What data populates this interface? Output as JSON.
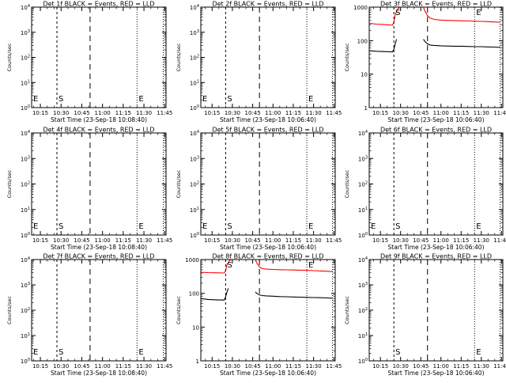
{
  "chart_data": [
    {
      "type": "line",
      "title": "Det 1f BLACK = Events, RED = LLD",
      "xlabel": "Start Time (23-Sep-18 10:08:40)",
      "ylabel": "Counts/sec",
      "y_scale": "log",
      "ylim": [
        1,
        10000
      ],
      "y_tick_labels": [
        "10^0",
        "10^1",
        "10^2",
        "10^3",
        "10^4"
      ],
      "x_tick_labels": [
        "10:15",
        "10:30",
        "10:45",
        "11:00",
        "11:15",
        "11:30",
        "11:45"
      ],
      "xlim_minutes_of_day": [
        608.67,
        706
      ],
      "markers": [
        {
          "label": "E",
          "x": "10:08:40",
          "style": "dotted"
        },
        {
          "label": "S",
          "x": "10:27",
          "style": "dashed"
        },
        {
          "label": "",
          "x": "10:51",
          "style": "longdash"
        },
        {
          "label": "E",
          "x": "11:25",
          "style": "dotted"
        },
        {
          "label": "",
          "x": "11:44",
          "style": "dotted"
        }
      ],
      "series": []
    },
    {
      "type": "line",
      "title": "Det 2f BLACK = Events, RED = LLD",
      "xlabel": "Start Time (23-Sep-18 10:06:40)",
      "ylabel": "Counts/sec",
      "y_scale": "log",
      "ylim": [
        1,
        10000
      ],
      "y_tick_labels": [
        "10^0",
        "10^1",
        "10^2",
        "10^3",
        "10^4"
      ],
      "x_tick_labels": [
        "10:15",
        "10:30",
        "10:45",
        "11:00",
        "11:15",
        "11:30",
        "11:45"
      ],
      "xlim_minutes_of_day": [
        606.67,
        706
      ],
      "markers": [
        {
          "label": "E",
          "x": "10:06:40",
          "style": "dotted"
        },
        {
          "label": "S",
          "x": "10:25",
          "style": "dashed"
        },
        {
          "label": "",
          "x": "10:50",
          "style": "longdash"
        },
        {
          "label": "E",
          "x": "11:25",
          "style": "dotted"
        },
        {
          "label": "",
          "x": "11:44",
          "style": "dotted"
        }
      ],
      "series": []
    },
    {
      "type": "line",
      "title": "Det 3f BLACK = Events, RED = LLD",
      "xlabel": "Start Time (23-Sep-18 10:06:40)",
      "ylabel": "Counts/sec",
      "y_scale": "log",
      "ylim": [
        1,
        1000
      ],
      "y_tick_labels": [
        "1",
        "10",
        "100",
        "1000"
      ],
      "x_tick_labels": [
        "10:15",
        "10:30",
        "10:45",
        "11:00",
        "11:15",
        "11:30",
        "11:45"
      ],
      "xlim_minutes_of_day": [
        606.67,
        706
      ],
      "markers": [
        {
          "label": "",
          "x": "10:06:40",
          "style": "dotted"
        },
        {
          "label": "S",
          "x": "10:25",
          "style": "dashed"
        },
        {
          "label": "",
          "x": "10:50",
          "style": "longdash"
        },
        {
          "label": "E",
          "x": "11:25",
          "style": "dotted"
        },
        {
          "label": "",
          "x": "11:44",
          "style": "dotted"
        }
      ],
      "series": [
        {
          "color": "#ff0000",
          "x": [
            "10:06:40",
            "10:12",
            "10:18",
            "10:24",
            "10:25",
            "10:26",
            "10:28",
            "10:30"
          ],
          "values": [
            330,
            310,
            300,
            290,
            360,
            600,
            900,
            1000
          ]
        },
        {
          "color": "#ff0000",
          "x": [
            "10:47",
            "10:48",
            "10:50",
            "10:52",
            "10:55",
            "11:00",
            "11:05",
            "11:10",
            "11:15",
            "11:20",
            "11:25",
            "11:30",
            "11:35",
            "11:40",
            "11:44"
          ],
          "values": [
            1000,
            780,
            560,
            470,
            430,
            410,
            400,
            395,
            390,
            385,
            380,
            375,
            370,
            360,
            355
          ]
        },
        {
          "color": "#000000",
          "x": [
            "10:06:40",
            "10:12",
            "10:18",
            "10:24",
            "10:25",
            "10:26",
            "10:27"
          ],
          "values": [
            50,
            48,
            47,
            46,
            55,
            80,
            110
          ]
        },
        {
          "color": "#000000",
          "x": [
            "10:47",
            "10:48",
            "10:50",
            "10:52",
            "10:55",
            "11:00",
            "11:05",
            "11:10",
            "11:15",
            "11:20",
            "11:25",
            "11:30",
            "11:35",
            "11:40",
            "11:44"
          ],
          "values": [
            110,
            95,
            80,
            74,
            72,
            70,
            69,
            68,
            68,
            67,
            66,
            66,
            65,
            64,
            63
          ]
        }
      ]
    },
    {
      "type": "line",
      "title": "Det 4f BLACK = Events, RED = LLD",
      "xlabel": "Start Time (23-Sep-18 10:08:40)",
      "ylabel": "Counts/sec",
      "y_scale": "log",
      "ylim": [
        1,
        10000
      ],
      "y_tick_labels": [
        "10^0",
        "10^1",
        "10^2",
        "10^3",
        "10^4"
      ],
      "x_tick_labels": [
        "10:15",
        "10:30",
        "10:45",
        "11:00",
        "11:15",
        "11:30",
        "11:45"
      ],
      "xlim_minutes_of_day": [
        608.67,
        706
      ],
      "markers": [
        {
          "label": "E",
          "x": "10:08:40",
          "style": "dotted"
        },
        {
          "label": "S",
          "x": "10:27",
          "style": "dashed"
        },
        {
          "label": "",
          "x": "10:51",
          "style": "longdash"
        },
        {
          "label": "E",
          "x": "11:25",
          "style": "dotted"
        },
        {
          "label": "",
          "x": "11:44",
          "style": "dotted"
        }
      ],
      "series": []
    },
    {
      "type": "line",
      "title": "Det 5f BLACK = Events, RED = LLD",
      "xlabel": "Start Time (23-Sep-18 10:06:40)",
      "ylabel": "Counts/sec",
      "y_scale": "log",
      "ylim": [
        1,
        10000
      ],
      "y_tick_labels": [
        "10^0",
        "10^1",
        "10^2",
        "10^3",
        "10^4"
      ],
      "x_tick_labels": [
        "10:15",
        "10:30",
        "10:45",
        "11:00",
        "11:15",
        "11:30",
        "11:45"
      ],
      "xlim_minutes_of_day": [
        606.67,
        706
      ],
      "markers": [
        {
          "label": "E",
          "x": "10:06:40",
          "style": "dotted"
        },
        {
          "label": "S",
          "x": "10:25",
          "style": "dashed"
        },
        {
          "label": "",
          "x": "10:50",
          "style": "longdash"
        },
        {
          "label": "E",
          "x": "11:25",
          "style": "dotted"
        },
        {
          "label": "",
          "x": "11:44",
          "style": "dotted"
        }
      ],
      "series": []
    },
    {
      "type": "line",
      "title": "Det 6f BLACK = Events, RED = LLD",
      "xlabel": "Start Time (23-Sep-18 10:06:40)",
      "ylabel": "Counts/sec",
      "y_scale": "log",
      "ylim": [
        1,
        10000
      ],
      "y_tick_labels": [
        "10^0",
        "10^1",
        "10^2",
        "10^3",
        "10^4"
      ],
      "x_tick_labels": [
        "10:15",
        "10:30",
        "10:45",
        "11:00",
        "11:15",
        "11:30",
        "11:45"
      ],
      "xlim_minutes_of_day": [
        606.67,
        706
      ],
      "markers": [
        {
          "label": "E",
          "x": "10:06:40",
          "style": "dotted"
        },
        {
          "label": "S",
          "x": "10:25",
          "style": "dashed"
        },
        {
          "label": "",
          "x": "10:50",
          "style": "longdash"
        },
        {
          "label": "E",
          "x": "11:25",
          "style": "dotted"
        },
        {
          "label": "",
          "x": "11:44",
          "style": "dotted"
        }
      ],
      "series": []
    },
    {
      "type": "line",
      "title": "Det 7f BLACK = Events, RED = LLD",
      "xlabel": "Start Time (23-Sep-18 10:08:40)",
      "ylabel": "Counts/sec",
      "y_scale": "log",
      "ylim": [
        1,
        10000
      ],
      "y_tick_labels": [
        "10^0",
        "10^1",
        "10^2",
        "10^3",
        "10^4"
      ],
      "x_tick_labels": [
        "10:15",
        "10:30",
        "10:45",
        "11:00",
        "11:15",
        "11:30",
        "11:45"
      ],
      "xlim_minutes_of_day": [
        608.67,
        706
      ],
      "markers": [
        {
          "label": "E",
          "x": "10:08:40",
          "style": "dotted"
        },
        {
          "label": "S",
          "x": "10:27",
          "style": "dashed"
        },
        {
          "label": "",
          "x": "10:51",
          "style": "longdash"
        },
        {
          "label": "E",
          "x": "11:25",
          "style": "dotted"
        },
        {
          "label": "",
          "x": "11:44",
          "style": "dotted"
        }
      ],
      "series": []
    },
    {
      "type": "line",
      "title": "Det 8f BLACK = Events, RED = LLD",
      "xlabel": "Start Time (23-Sep-18 10:06:40)",
      "ylabel": "Counts/sec",
      "y_scale": "log",
      "ylim": [
        1,
        1000
      ],
      "y_tick_labels": [
        "1",
        "10",
        "100",
        "1000"
      ],
      "x_tick_labels": [
        "10:15",
        "10:30",
        "10:45",
        "11:00",
        "11:15",
        "11:30",
        "11:45"
      ],
      "xlim_minutes_of_day": [
        606.67,
        706
      ],
      "markers": [
        {
          "label": "",
          "x": "10:06:40",
          "style": "dotted"
        },
        {
          "label": "S",
          "x": "10:25",
          "style": "dashed"
        },
        {
          "label": "",
          "x": "10:50",
          "style": "longdash"
        },
        {
          "label": "E",
          "x": "11:25",
          "style": "dotted"
        },
        {
          "label": "",
          "x": "11:44",
          "style": "dotted"
        }
      ],
      "series": [
        {
          "color": "#ff0000",
          "x": [
            "10:06:40",
            "10:12",
            "10:18",
            "10:24",
            "10:25",
            "10:26",
            "10:28",
            "10:30"
          ],
          "values": [
            420,
            410,
            405,
            400,
            470,
            700,
            950,
            1000
          ]
        },
        {
          "color": "#ff0000",
          "x": [
            "10:47",
            "10:48",
            "10:50",
            "10:52",
            "10:55",
            "11:00",
            "11:05",
            "11:10",
            "11:15",
            "11:20",
            "11:25",
            "11:30",
            "11:35",
            "11:40",
            "11:44"
          ],
          "values": [
            1000,
            800,
            600,
            540,
            520,
            510,
            500,
            495,
            490,
            485,
            480,
            470,
            460,
            450,
            440
          ]
        },
        {
          "color": "#000000",
          "x": [
            "10:06:40",
            "10:12",
            "10:18",
            "10:24",
            "10:25",
            "10:26",
            "10:27"
          ],
          "values": [
            70,
            66,
            64,
            63,
            80,
            110,
            140
          ]
        },
        {
          "color": "#000000",
          "x": [
            "10:47",
            "10:48",
            "10:50",
            "10:52",
            "10:55",
            "11:00",
            "11:05",
            "11:10",
            "11:15",
            "11:20",
            "11:25",
            "11:30",
            "11:35",
            "11:40",
            "11:44"
          ],
          "values": [
            110,
            100,
            90,
            86,
            84,
            82,
            80,
            79,
            78,
            77,
            76,
            75,
            74,
            73,
            72
          ]
        }
      ]
    },
    {
      "type": "line",
      "title": "Det 9f BLACK = Events, RED = LLD",
      "xlabel": "Start Time (23-Sep-18 10:06:40)",
      "ylabel": "Counts/sec",
      "y_scale": "log",
      "ylim": [
        1,
        10000
      ],
      "y_tick_labels": [
        "10^0",
        "10^1",
        "10^2",
        "10^3",
        "10^4"
      ],
      "x_tick_labels": [
        "10:15",
        "10:30",
        "10:45",
        "11:00",
        "11:15",
        "11:30",
        "11:45"
      ],
      "xlim_minutes_of_day": [
        606.67,
        706
      ],
      "markers": [
        {
          "label": "",
          "x": "10:06:40",
          "style": "dotted"
        },
        {
          "label": "S",
          "x": "10:25",
          "style": "dashed"
        },
        {
          "label": "",
          "x": "10:50",
          "style": "longdash"
        },
        {
          "label": "E",
          "x": "11:25",
          "style": "dotted"
        },
        {
          "label": "",
          "x": "11:44",
          "style": "dotted"
        }
      ],
      "series": []
    }
  ]
}
